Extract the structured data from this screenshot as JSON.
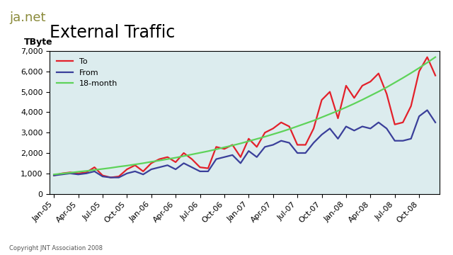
{
  "chart_data": {
    "type": "line",
    "title": "External Traffic",
    "y_label": "TByte",
    "annotations": [
      "ja.net",
      "Copyright JNT Association 2008"
    ],
    "categories": [
      "Jan-05",
      null,
      null,
      "Apr-05",
      null,
      null,
      "Jul-05",
      null,
      null,
      "Oct-05",
      null,
      null,
      "Jan-06",
      null,
      null,
      "Apr-06",
      null,
      null,
      "Jul-06",
      null,
      null,
      "Oct-06",
      null,
      null,
      "Jan-07",
      null,
      null,
      "Apr-07",
      null,
      null,
      "Jul-07",
      null,
      null,
      "Oct-07",
      null,
      null,
      "Jan-08",
      null,
      null,
      "Apr-08",
      null,
      null,
      "Jul-08",
      null,
      null,
      "Oct-08",
      null,
      null
    ],
    "series": [
      {
        "name": "To",
        "color": "#e3202a",
        "values": [
          900,
          1000,
          1050,
          1000,
          1050,
          1300,
          900,
          800,
          850,
          1200,
          1400,
          1100,
          1500,
          1700,
          1800,
          1550,
          2000,
          1700,
          1300,
          1250,
          2300,
          2200,
          2400,
          1800,
          2700,
          2300,
          3000,
          3200,
          3500,
          3300,
          2400,
          2400,
          3200,
          4600,
          5000,
          3700,
          5300,
          4700,
          5300,
          5500,
          5900,
          4900,
          3400,
          3500,
          4300,
          6000,
          6700,
          5800
        ]
      },
      {
        "name": "From",
        "color": "#3a3f9a",
        "values": [
          900,
          950,
          1000,
          950,
          1000,
          1100,
          850,
          800,
          800,
          1000,
          1100,
          950,
          1200,
          1300,
          1400,
          1200,
          1500,
          1300,
          1100,
          1100,
          1700,
          1800,
          1900,
          1500,
          2100,
          1800,
          2300,
          2400,
          2600,
          2500,
          2000,
          2000,
          2500,
          2900,
          3200,
          2700,
          3300,
          3100,
          3300,
          3200,
          3500,
          3200,
          2600,
          2600,
          2700,
          3800,
          4100,
          3500
        ]
      },
      {
        "name": "18-month",
        "color": "#5ed35a",
        "values": [
          950,
          990,
          1030,
          1080,
          1120,
          1170,
          1220,
          1270,
          1330,
          1380,
          1440,
          1500,
          1570,
          1630,
          1700,
          1770,
          1850,
          1930,
          2010,
          2090,
          2180,
          2280,
          2370,
          2470,
          2580,
          2690,
          2800,
          2920,
          3040,
          3170,
          3310,
          3450,
          3590,
          3750,
          3910,
          4070,
          4240,
          4420,
          4610,
          4810,
          5010,
          5220,
          5450,
          5680,
          5920,
          6170,
          6430,
          6700
        ]
      }
    ],
    "ylim": [
      0,
      7000
    ],
    "yticks": [
      0,
      {
        "value": 1000,
        "label": "1,000"
      },
      {
        "value": 2000,
        "label": "2,000"
      },
      {
        "value": 3000,
        "label": "3,000"
      },
      {
        "value": 4000,
        "label": "4,000"
      },
      {
        "value": 5000,
        "label": "5,000"
      },
      {
        "value": 6000,
        "label": "6,000"
      },
      {
        "value": 7000,
        "label": "7,000"
      }
    ],
    "grid": false,
    "legend": "upper left"
  }
}
